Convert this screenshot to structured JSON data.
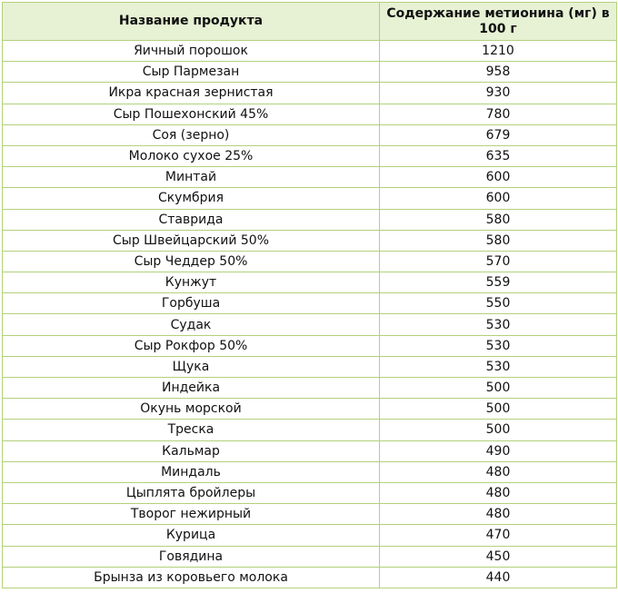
{
  "table": {
    "headers": [
      "Название продукта",
      "Содержание метионина (мг) в 100 г"
    ],
    "rows": [
      [
        "Яичный порошок",
        "1210"
      ],
      [
        "Сыр Пармезан",
        "958"
      ],
      [
        "Икра красная зернистая",
        "930"
      ],
      [
        "Сыр Пошехонский 45%",
        "780"
      ],
      [
        "Соя (зерно)",
        "679"
      ],
      [
        "Молоко сухое 25%",
        "635"
      ],
      [
        "Минтай",
        "600"
      ],
      [
        "Скумбрия",
        "600"
      ],
      [
        "Ставрида",
        "580"
      ],
      [
        "Сыр Швейцарский 50%",
        "580"
      ],
      [
        "Сыр Чеддер 50%",
        "570"
      ],
      [
        "Кунжут",
        "559"
      ],
      [
        "Горбуша",
        "550"
      ],
      [
        "Судак",
        "530"
      ],
      [
        "Сыр Рокфор 50%",
        "530"
      ],
      [
        "Щука",
        "530"
      ],
      [
        "Индейка",
        "500"
      ],
      [
        "Окунь морской",
        "500"
      ],
      [
        "Треска",
        "500"
      ],
      [
        "Кальмар",
        "490"
      ],
      [
        "Миндаль",
        "480"
      ],
      [
        "Цыплята бройлеры",
        "480"
      ],
      [
        "Творог нежирный",
        "480"
      ],
      [
        "Курица",
        "470"
      ],
      [
        "Говядина",
        "450"
      ],
      [
        "Брынза из коровьего молока",
        "440"
      ]
    ]
  },
  "colors": {
    "border": "#b3d17a",
    "header_background": "#e7f1d4",
    "text": "#111111"
  }
}
